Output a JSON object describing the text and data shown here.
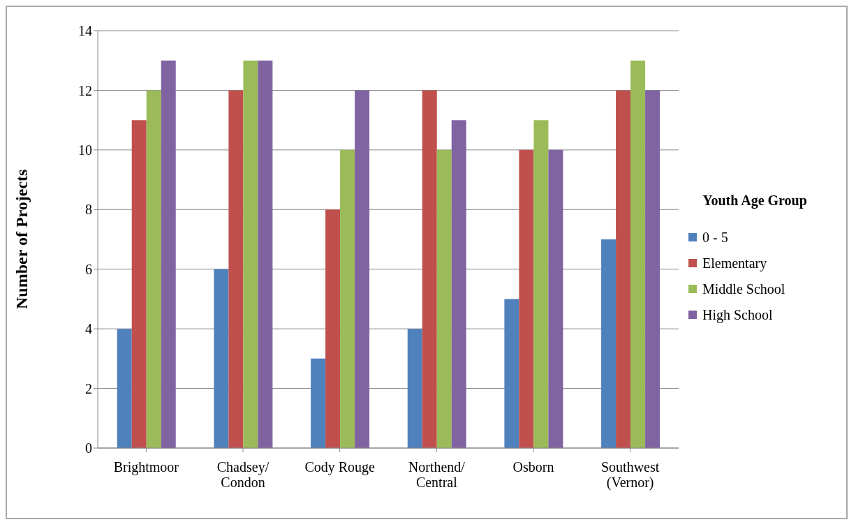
{
  "chart_data": {
    "type": "bar",
    "ylabel": "Number of Projects",
    "legend_title": "Youth Age Group",
    "categories": [
      "Brightmoor",
      "Chadsey/\nCondon",
      "Cody Rouge",
      "Northend/\nCentral",
      "Osborn",
      "Southwest\n(Vernor)"
    ],
    "series": [
      {
        "name": "0 - 5",
        "color": "#4f81bd",
        "values": [
          4,
          6,
          3,
          4,
          5,
          7
        ]
      },
      {
        "name": "Elementary",
        "color": "#c0504d",
        "values": [
          11,
          12,
          8,
          12,
          10,
          12
        ]
      },
      {
        "name": "Middle School",
        "color": "#9bbb59",
        "values": [
          12,
          13,
          10,
          10,
          11,
          13
        ]
      },
      {
        "name": "High School",
        "color": "#8064a2",
        "values": [
          13,
          13,
          12,
          11,
          10,
          12
        ]
      }
    ],
    "ylim": [
      0,
      14
    ],
    "yticks": [
      0,
      2,
      4,
      6,
      8,
      10,
      12,
      14
    ],
    "grid": "y",
    "legend": "right"
  }
}
